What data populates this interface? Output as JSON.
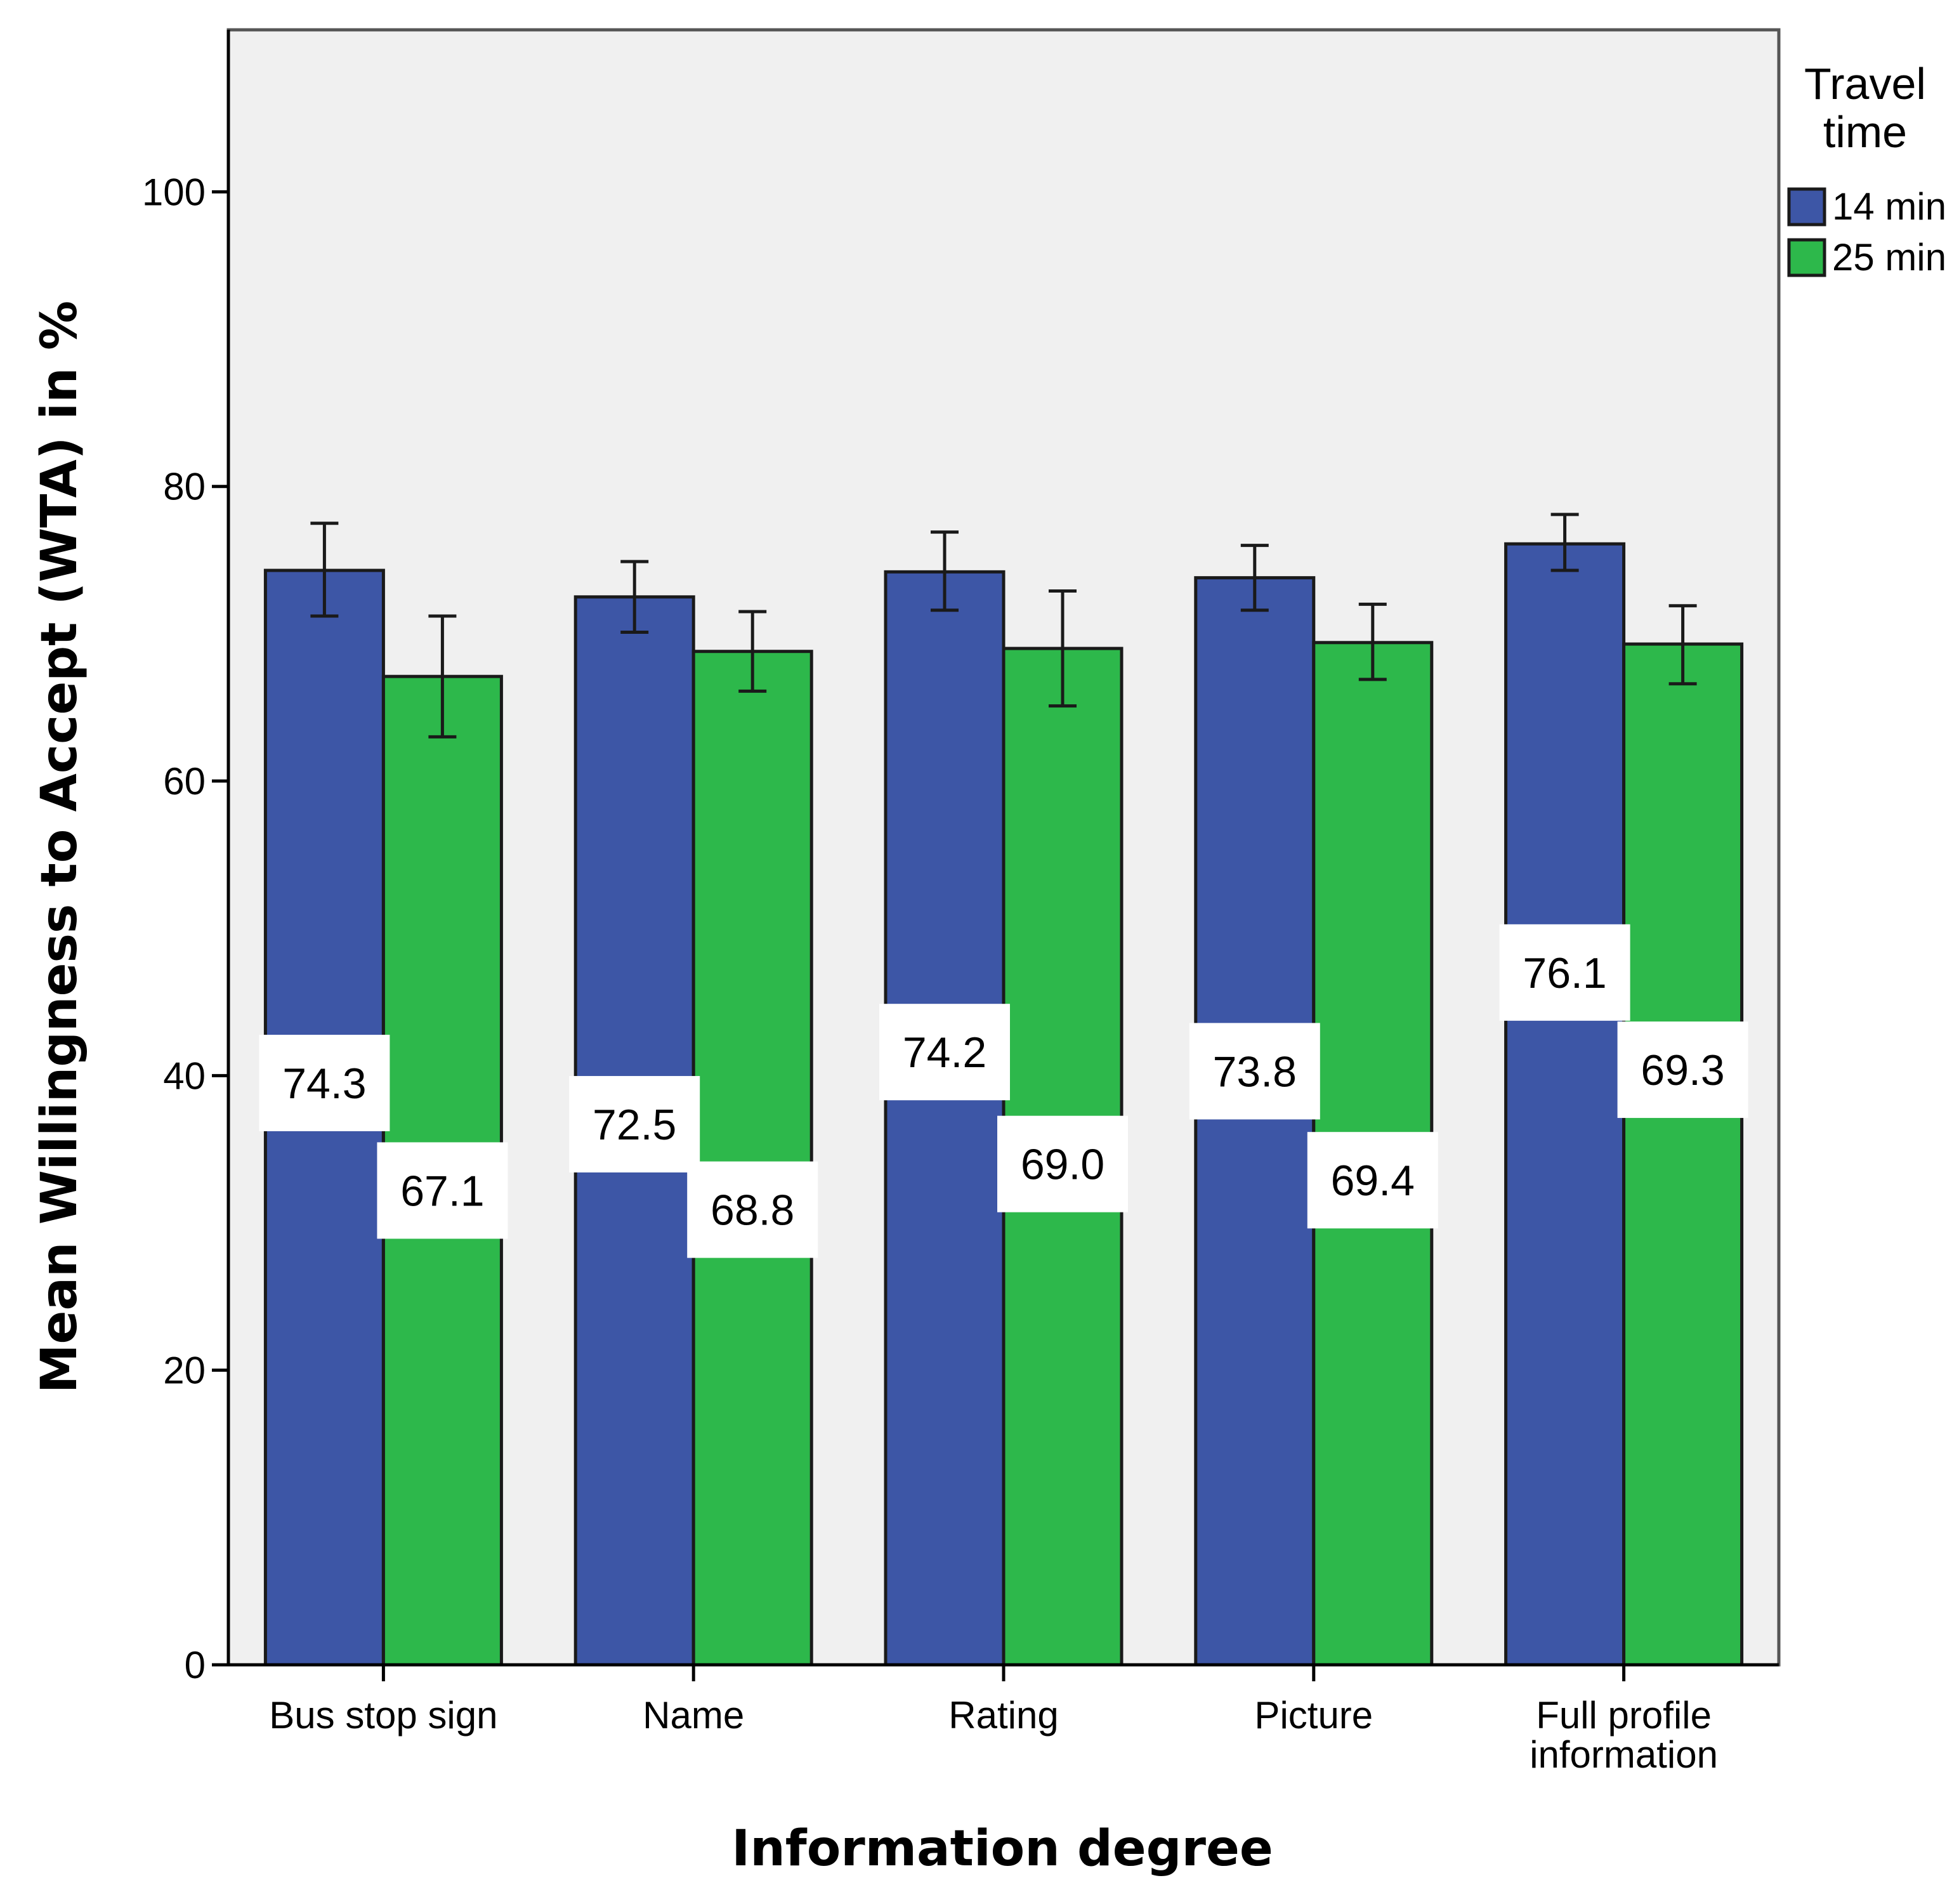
{
  "chart_data": {
    "type": "bar",
    "title": "",
    "xlabel": "Information degree",
    "ylabel": "Mean Willingness to Accept (WTA) in %",
    "ylim": [
      0,
      111
    ],
    "yticks": [
      0,
      20,
      40,
      60,
      80,
      100
    ],
    "categories": [
      [
        "Bus stop sign"
      ],
      [
        "Name"
      ],
      [
        "Rating"
      ],
      [
        "Picture"
      ],
      [
        "Full profile",
        "information"
      ]
    ],
    "legend": {
      "title": [
        "Travel",
        "time"
      ],
      "position": "right"
    },
    "series": [
      {
        "name": "14 min",
        "color": "#3d56a6",
        "values": [
          74.3,
          72.5,
          74.2,
          73.8,
          76.1
        ],
        "labels": [
          "74.3",
          "72.5",
          "74.2",
          "73.8",
          "76.1"
        ],
        "error_low": [
          71.2,
          70.1,
          71.6,
          71.6,
          74.3
        ],
        "error_high": [
          77.5,
          74.9,
          76.9,
          76.0,
          78.1
        ]
      },
      {
        "name": "25 min",
        "color": "#2db84b",
        "values": [
          67.1,
          68.8,
          69.0,
          69.4,
          69.3
        ],
        "labels": [
          "67.1",
          "68.8",
          "69.0",
          "69.4",
          "69.3"
        ],
        "error_low": [
          63.0,
          66.1,
          65.1,
          66.9,
          66.6
        ],
        "error_high": [
          71.2,
          71.5,
          72.9,
          72.0,
          71.9
        ]
      }
    ],
    "data_label_positions": [
      [
        39.5,
        32.2
      ],
      [
        36.7,
        30.9
      ],
      [
        41.6,
        34.0
      ],
      [
        40.3,
        32.9
      ],
      [
        47.0,
        40.4
      ]
    ],
    "grid": false,
    "error_bars": true
  }
}
